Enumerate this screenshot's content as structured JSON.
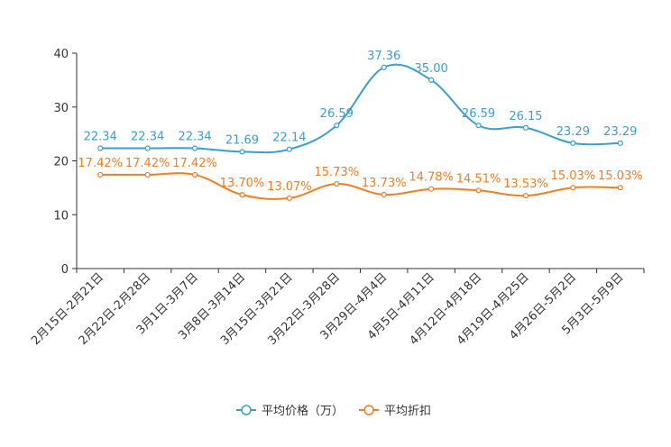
{
  "chart_data": {
    "type": "line",
    "categories": [
      "2月15日-2月21日",
      "2月22日-2月28日",
      "3月1日-3月7日",
      "3月8日-3月14日",
      "3月15日-3月21日",
      "3月22日-3月28日",
      "3月29日-4月4日",
      "4月5日-4月11日",
      "4月12日-4月18日",
      "4月19日-4月25日",
      "4月26日-5月2日",
      "5月3日-5月9日"
    ],
    "ylim": [
      0,
      40
    ],
    "yticks": [
      0,
      10,
      20,
      30,
      40
    ],
    "series": [
      {
        "name": "平均价格（万）",
        "color": "#3a9fd0",
        "values": [
          22.34,
          22.34,
          22.34,
          21.69,
          22.14,
          26.59,
          37.36,
          35.0,
          26.59,
          26.15,
          23.29,
          23.29
        ],
        "labels": [
          "22.34",
          "22.34",
          "22.34",
          "21.69",
          "22.14",
          "26.59",
          "37.36",
          "35.00",
          "26.59",
          "26.15",
          "23.29",
          "23.29"
        ]
      },
      {
        "name": "平均折扣",
        "color": "#f47d20",
        "values": [
          17.42,
          17.42,
          17.42,
          13.7,
          13.07,
          15.73,
          13.73,
          14.78,
          14.51,
          13.53,
          15.03,
          15.03
        ],
        "labels": [
          "17.42%",
          "17.42%",
          "17.42%",
          "13.70%",
          "13.07%",
          "15.73%",
          "13.73%",
          "14.78%",
          "14.51%",
          "13.53%",
          "15.03%",
          "15.03%"
        ]
      }
    ],
    "legend": "bottom-center"
  }
}
